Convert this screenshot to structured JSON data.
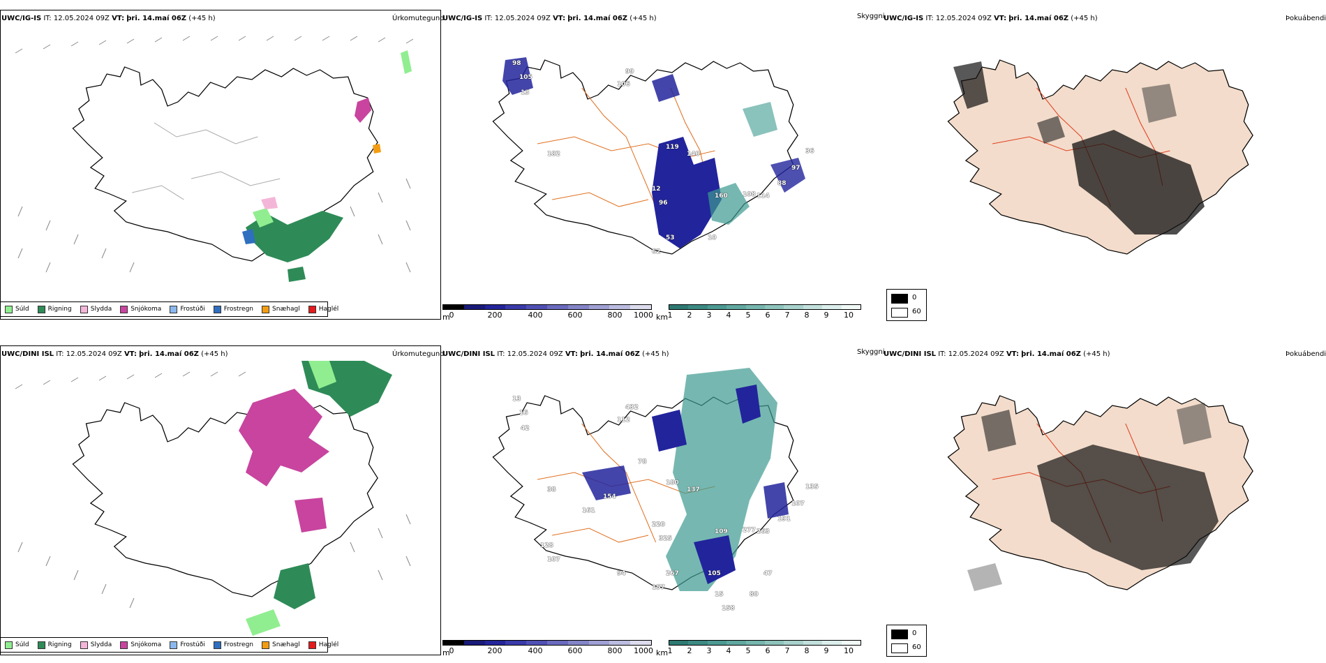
{
  "colors": {
    "sud": "#90ee90",
    "rigning": "#2e8b57",
    "slydda": "#f4b6d8",
    "snjokoma": "#c8449f",
    "frostudi": "#8ab8ee",
    "frostregn": "#2f6fbf",
    "snaehagl": "#f39c12",
    "haglel": "#e41a1c",
    "road": "#e07020",
    "land_fog": "#f3dccb",
    "cloud_blue": "#22249c",
    "cloud_teal": "#3c9a90"
  },
  "rows": [
    {
      "model": "UWC/IG-IS",
      "it_label": "IT:",
      "it_value": "12.05.2024 09Z",
      "vt_label": "VT:",
      "vt_value": "þri. 14.maí 06Z",
      "lead": "(+45 h)",
      "products": {
        "precip": "Úrkomutegund",
        "ceiling": "Skyggni",
        "fog": "Þokuábendi"
      },
      "ceiling_labels": [
        "98",
        "105",
        "13",
        "106",
        "99",
        "119",
        "182",
        "12",
        "96",
        "53",
        "62",
        "10",
        "160",
        "108",
        "114",
        "88",
        "97",
        "36",
        "140"
      ]
    },
    {
      "model": "UWC/DINI ISL",
      "it_label": "IT:",
      "it_value": "12.05.2024 09Z",
      "vt_label": "VT:",
      "vt_value": "þri. 14.maí 06Z",
      "lead": "(+45 h)",
      "products": {
        "precip": "Úrkomutegund",
        "ceiling": "Skyggni",
        "fog": "Þokuábendi"
      },
      "ceiling_labels": [
        "112",
        "432",
        "180",
        "38",
        "220",
        "325",
        "267",
        "157",
        "105",
        "109",
        "277",
        "263",
        "191",
        "107",
        "135",
        "137",
        "78",
        "154",
        "161",
        "128",
        "107",
        "94",
        "15",
        "158",
        "80",
        "47",
        "13",
        "16",
        "42"
      ]
    }
  ],
  "precip_legend": [
    "Súld",
    "Rigning",
    "Slydda",
    "Snjókoma",
    "Frostúði",
    "Frostregn",
    "Snæhagl",
    "Haglél"
  ],
  "height_bar": {
    "unit": "m",
    "ticks": [
      "0",
      "200",
      "400",
      "600",
      "800",
      "1000"
    ]
  },
  "vis_bar": {
    "unit": "km",
    "ticks": [
      "1",
      "2",
      "3",
      "4",
      "5",
      "6",
      "7",
      "8",
      "9",
      "10"
    ]
  },
  "fog_legend": {
    "top": "0",
    "bottom": "60"
  }
}
